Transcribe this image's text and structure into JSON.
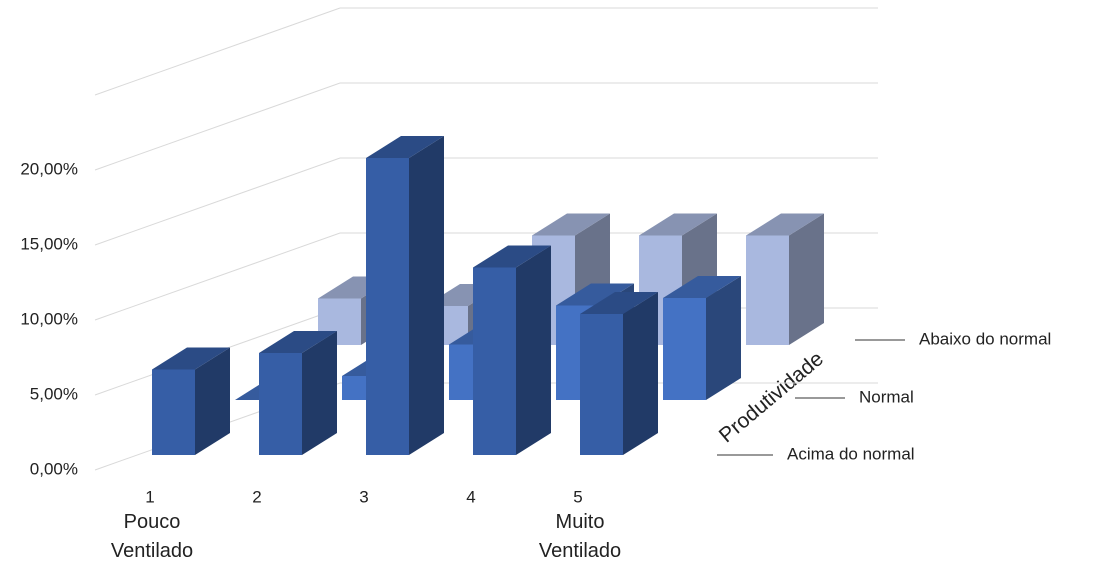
{
  "chart_data": {
    "type": "bar3d",
    "categories": [
      "1",
      "2",
      "3",
      "4",
      "5"
    ],
    "annotations": [
      "Pouco Ventilado",
      "Muito Ventilado"
    ],
    "depth_axis_title": "Produtividade",
    "series": [
      {
        "name": "Acima do normal",
        "color": "#365EA6",
        "values": [
          5.7,
          6.8,
          19.8,
          12.5,
          9.4
        ]
      },
      {
        "name": "Normal",
        "color": "#4472C4",
        "values": [
          0,
          1.6,
          3.7,
          6.3,
          6.8
        ]
      },
      {
        "name": "Abaixo do normal",
        "color": "#A9B8DF",
        "values": [
          3.1,
          2.6,
          7.3,
          7.3,
          7.3
        ]
      }
    ],
    "ylim": [
      0,
      25
    ],
    "yticks": [
      {
        "value": 0,
        "label": "0,00%"
      },
      {
        "value": 5,
        "label": "5,00%"
      },
      {
        "value": 10,
        "label": "10,00%"
      },
      {
        "value": 15,
        "label": "15,00%"
      },
      {
        "value": 20,
        "label": "20,00%"
      }
    ],
    "grid": true
  }
}
